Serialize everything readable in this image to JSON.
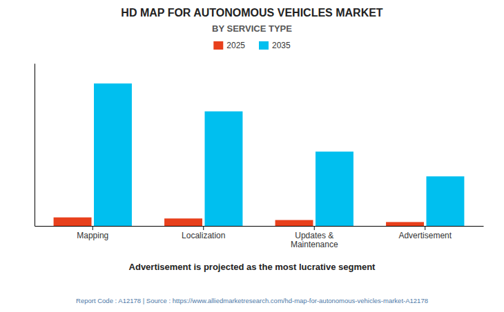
{
  "chart_data": {
    "type": "bar",
    "title": "HD MAP FOR AUTONOMOUS VEHICLES MARKET",
    "subtitle": "BY SERVICE TYPE",
    "categories": [
      "Mapping",
      "Localization",
      "Updates &\nMaintenance",
      "Advertisement"
    ],
    "series": [
      {
        "name": "2025",
        "color": "#E8401C",
        "values": [
          0.055,
          0.048,
          0.038,
          0.025
        ]
      },
      {
        "name": "2035",
        "color": "#00BFEF",
        "values": [
          0.92,
          0.74,
          0.48,
          0.32
        ]
      }
    ],
    "ylim": [
      0,
      1.05
    ],
    "yticks": [],
    "grid": false,
    "tick_labels": "x",
    "legend": "top",
    "annotations": [
      "Advertisement is projected as the most lucrative segment",
      "Report Code : A12178  |  Source : https://www.alliedmarketresearch.com/hd-map-for-autonomous-vehicles-market-A12178"
    ]
  }
}
